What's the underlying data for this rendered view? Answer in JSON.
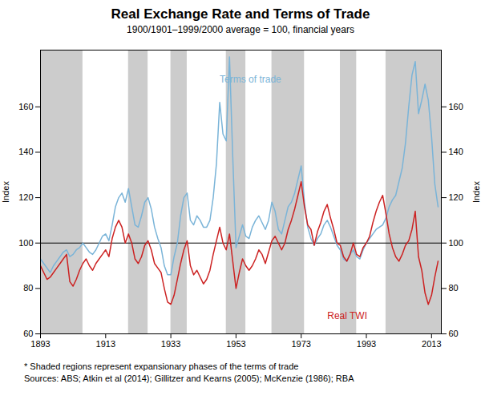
{
  "chart_data": {
    "type": "line",
    "title": "Real Exchange Rate and Terms of Trade",
    "subtitle": "1900/1901–1999/2000 average = 100, financial years",
    "ylabel": "Index",
    "y2label": "Index",
    "xlim": [
      1893,
      2016
    ],
    "xticks": [
      1893,
      1913,
      1933,
      1953,
      1973,
      1993,
      2013
    ],
    "ylim": [
      60,
      185
    ],
    "yticks": [
      60,
      80,
      100,
      120,
      140,
      160
    ],
    "y2lim": [
      60,
      185
    ],
    "y2ticks": [
      60,
      80,
      100,
      120,
      140,
      160
    ],
    "grid": false,
    "reference_line": {
      "y": 100,
      "color": "black"
    },
    "shaded_regions": {
      "color": "#cccccc",
      "ranges": [
        [
          1893,
          1906
        ],
        [
          1920,
          1926
        ],
        [
          1933,
          1938
        ],
        [
          1950,
          1956
        ],
        [
          1964,
          1974
        ],
        [
          1985,
          1990
        ],
        [
          1999,
          2016
        ]
      ]
    },
    "x": [
      1893,
      1894,
      1895,
      1896,
      1897,
      1898,
      1899,
      1900,
      1901,
      1902,
      1903,
      1904,
      1905,
      1906,
      1907,
      1908,
      1909,
      1910,
      1911,
      1912,
      1913,
      1914,
      1915,
      1916,
      1917,
      1918,
      1919,
      1920,
      1921,
      1922,
      1923,
      1924,
      1925,
      1926,
      1927,
      1928,
      1929,
      1930,
      1931,
      1932,
      1933,
      1934,
      1935,
      1936,
      1937,
      1938,
      1939,
      1940,
      1941,
      1942,
      1943,
      1944,
      1945,
      1946,
      1947,
      1948,
      1949,
      1950,
      1951,
      1952,
      1953,
      1954,
      1955,
      1956,
      1957,
      1958,
      1959,
      1960,
      1961,
      1962,
      1963,
      1964,
      1965,
      1966,
      1967,
      1968,
      1969,
      1970,
      1971,
      1972,
      1973,
      1974,
      1975,
      1976,
      1977,
      1978,
      1979,
      1980,
      1981,
      1982,
      1983,
      1984,
      1985,
      1986,
      1987,
      1988,
      1989,
      1990,
      1991,
      1992,
      1993,
      1994,
      1995,
      1996,
      1997,
      1998,
      1999,
      2000,
      2001,
      2002,
      2003,
      2004,
      2005,
      2006,
      2007,
      2008,
      2009,
      2010,
      2011,
      2012,
      2013,
      2014,
      2015
    ],
    "series": [
      {
        "name": "Terms of trade",
        "color": "#7ab4d8",
        "label_at": [
          1948,
          172
        ],
        "values": [
          93,
          91,
          89,
          87,
          90,
          92,
          94,
          96,
          97,
          94,
          95,
          97,
          98,
          100,
          98,
          96,
          95,
          97,
          100,
          103,
          104,
          101,
          108,
          116,
          120,
          122,
          118,
          124,
          116,
          108,
          107,
          112,
          118,
          120,
          115,
          107,
          102,
          98,
          90,
          86,
          86,
          94,
          100,
          112,
          120,
          122,
          110,
          108,
          112,
          110,
          107,
          107,
          110,
          120,
          135,
          162,
          148,
          145,
          182,
          138,
          98,
          103,
          108,
          103,
          102,
          107,
          110,
          112,
          109,
          106,
          110,
          118,
          114,
          106,
          104,
          110,
          116,
          118,
          122,
          128,
          134,
          118,
          107,
          102,
          99,
          102,
          104,
          108,
          110,
          107,
          103,
          99,
          97,
          93,
          92,
          95,
          97,
          94,
          93,
          97,
          100,
          102,
          104,
          106,
          107,
          108,
          111,
          116,
          119,
          121,
          127,
          133,
          144,
          160,
          174,
          180,
          157,
          163,
          170,
          163,
          147,
          126,
          116
        ]
      },
      {
        "name": "Real TWI",
        "color": "#cc2222",
        "label_at": [
          1981,
          68
        ],
        "values": [
          90,
          87,
          84,
          85,
          87,
          89,
          91,
          93,
          95,
          83,
          81,
          84,
          88,
          91,
          93,
          90,
          88,
          91,
          93,
          95,
          97,
          94,
          102,
          107,
          110,
          107,
          100,
          104,
          100,
          93,
          91,
          94,
          99,
          101,
          97,
          91,
          89,
          87,
          80,
          74,
          73,
          77,
          84,
          91,
          97,
          101,
          90,
          86,
          88,
          85,
          82,
          84,
          88,
          95,
          101,
          107,
          100,
          97,
          104,
          92,
          80,
          87,
          93,
          90,
          88,
          90,
          93,
          97,
          95,
          91,
          96,
          101,
          103,
          100,
          97,
          100,
          106,
          110,
          115,
          121,
          127,
          116,
          108,
          106,
          99,
          105,
          109,
          114,
          117,
          111,
          106,
          100,
          99,
          94,
          92,
          95,
          100,
          95,
          94,
          98,
          100,
          103,
          109,
          114,
          118,
          121,
          113,
          104,
          98,
          94,
          92,
          95,
          99,
          101,
          106,
          114,
          94,
          88,
          78,
          73,
          77,
          85,
          92
        ]
      }
    ],
    "notes": [
      "* Shaded regions represent expansionary phases of the terms of trade",
      "Sources: ABS; Atkin et al (2014); Gillitzer and Kearns (2005); McKenzie (1986); RBA"
    ]
  }
}
